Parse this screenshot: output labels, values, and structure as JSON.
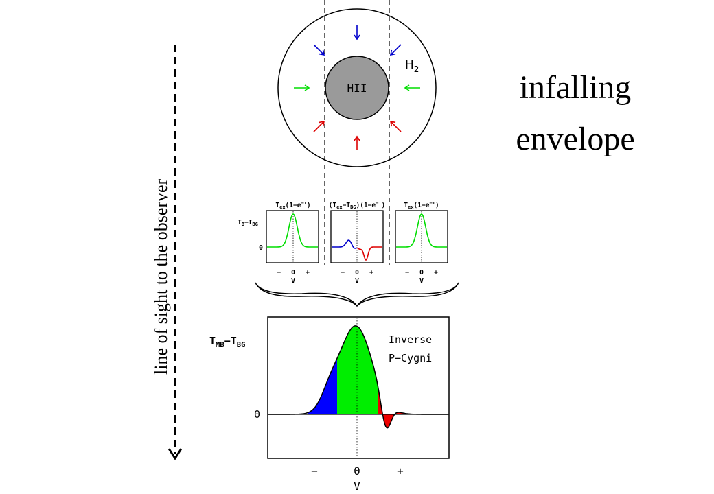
{
  "side_text": {
    "line1": "infalling",
    "line2": "envelope"
  },
  "line_of_sight": {
    "label": "line of sight to the observer"
  },
  "envelope": {
    "core_label": "HII",
    "shell_label": "H",
    "shell_label_sub": "2",
    "arrow_colors": {
      "top": "#0000cc",
      "middle": "#00dd00",
      "bottom": "#dd0000"
    }
  },
  "small_panels": {
    "labels": [
      "T",
      "ex",
      "(1−e",
      "−τ",
      ")"
    ],
    "middle_label_parts": [
      "(T",
      "ex",
      "−T",
      "BG",
      ")(1−e",
      "−τ",
      ")"
    ],
    "y_label": "T",
    "y_label_sub1": "B",
    "y_label_mid": "−T",
    "y_label_sub2": "BG",
    "zero": "0",
    "ticks": [
      "−",
      "0",
      "+"
    ],
    "x_label": "V",
    "colors": {
      "emission": "#00dd00",
      "blue": "#0000cc",
      "red": "#dd0000"
    }
  },
  "main_panel": {
    "y_label_a": "T",
    "y_label_sub1": "MB",
    "y_label_mid": "−T",
    "y_label_sub2": "BG",
    "zero": "0",
    "ticks": [
      "−",
      "0",
      "+"
    ],
    "x_label": "V",
    "legend_line1": "Inverse",
    "legend_line2": "P−Cygni",
    "fill_colors": {
      "blue": "#0000ff",
      "green": "#00ee00",
      "red": "#ee0000"
    }
  }
}
